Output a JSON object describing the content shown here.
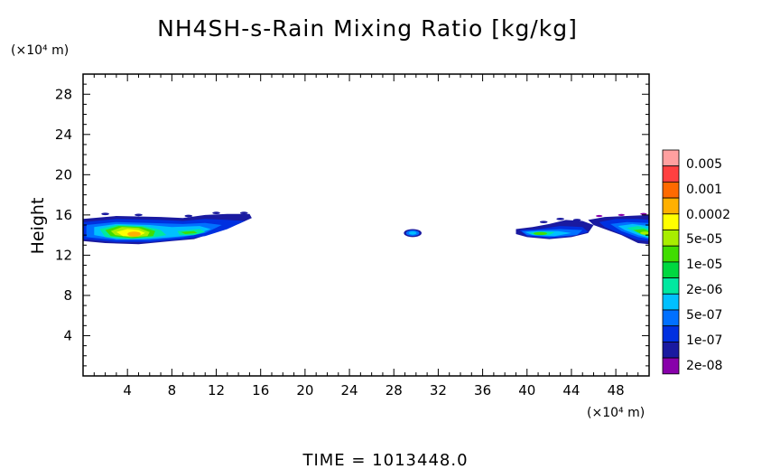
{
  "chart_data": {
    "type": "heatmap",
    "title": "NH4SH-s-Rain Mixing Ratio [kg/kg]",
    "ylabel": "Height",
    "y_unit": "(×10⁴ m)",
    "x_unit": "(×10⁴ m)",
    "xlim": [
      0,
      51
    ],
    "ylim": [
      0,
      30
    ],
    "x_ticks": [
      4,
      8,
      12,
      16,
      20,
      24,
      28,
      32,
      36,
      40,
      44,
      48
    ],
    "y_ticks": [
      4,
      8,
      12,
      16,
      20,
      24,
      28
    ],
    "grid": false,
    "footer": "TIME = 1013448.0",
    "colorbar": {
      "labels": [
        "0.005",
        "0.001",
        "0.0002",
        "5e-05",
        "1e-05",
        "2e-06",
        "5e-07",
        "1e-07",
        "2e-08"
      ],
      "colors": [
        "#ffa0a0",
        "#ff4040",
        "#ff6a00",
        "#ffb000",
        "#ffff00",
        "#a8ee00",
        "#40dd00",
        "#00d840",
        "#00e8a0",
        "#00c0ff",
        "#0070ff",
        "#0030e0",
        "#1a1aa0",
        "#8800aa"
      ]
    },
    "regions": [
      {
        "x": [
          0,
          15
        ],
        "y": [
          13.2,
          16.0
        ],
        "max_level": "0.0002"
      },
      {
        "x": [
          29,
          30.5
        ],
        "y": [
          13.8,
          14.6
        ],
        "max_level": "5e-07"
      },
      {
        "x": [
          39,
          46
        ],
        "y": [
          13.6,
          15.6
        ],
        "max_level": "1e-05"
      },
      {
        "x": [
          45.5,
          51
        ],
        "y": [
          13.0,
          16.0
        ],
        "max_level": "1e-05"
      }
    ]
  }
}
